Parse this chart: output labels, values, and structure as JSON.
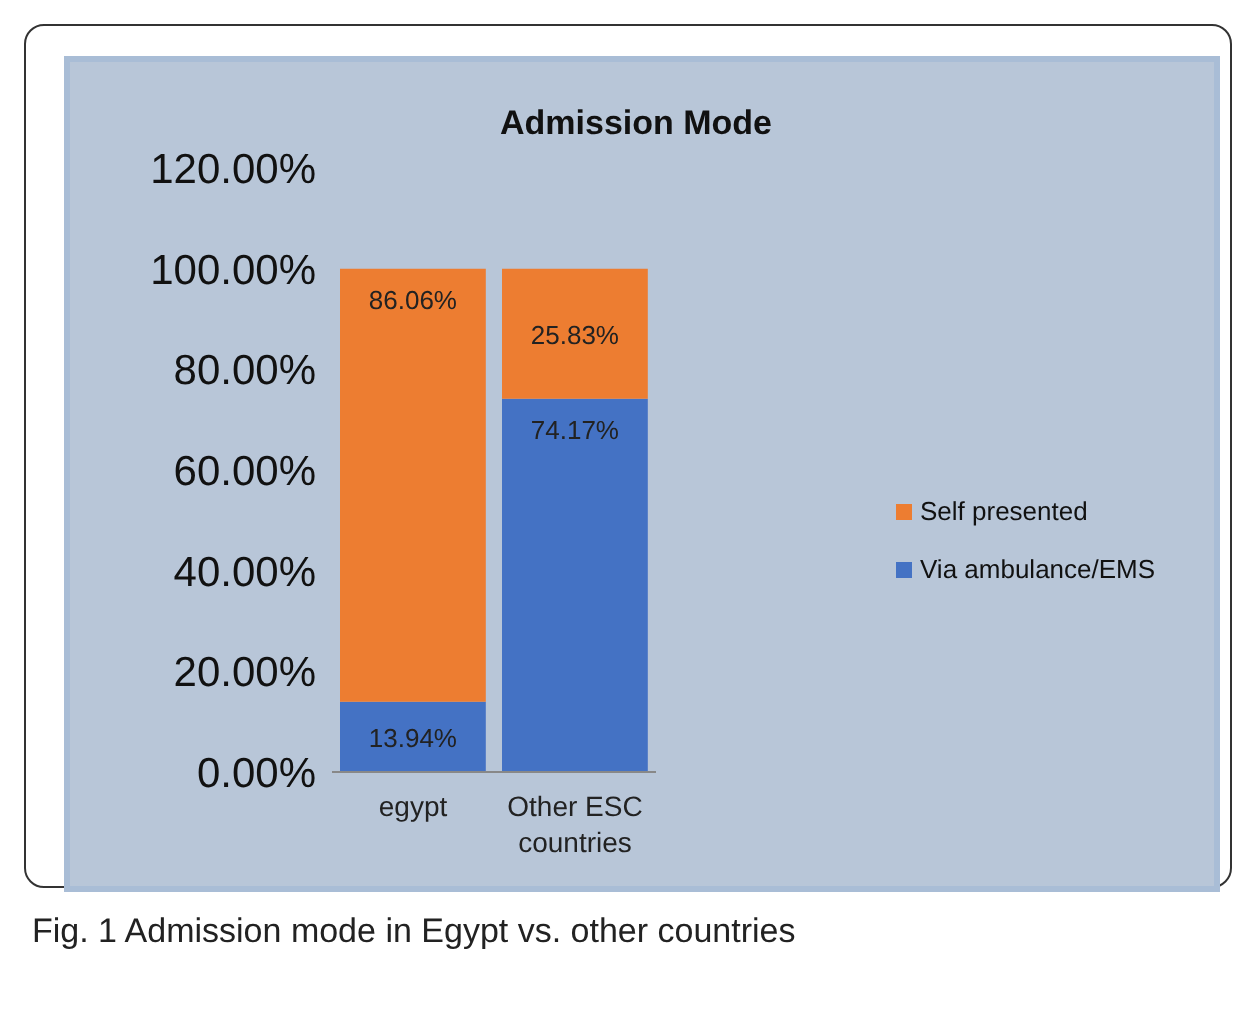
{
  "chart_data": {
    "type": "bar",
    "title": "Admission Mode",
    "categories": [
      "egypt",
      "Other ESC countries"
    ],
    "stacked": true,
    "series": [
      {
        "name": "Via ambulance/EMS",
        "color": "#4472c4",
        "values": [
          13.94,
          74.17
        ],
        "value_labels": [
          "13.94%",
          "74.17%"
        ]
      },
      {
        "name": "Self presented",
        "color": "#ed7d31",
        "values": [
          86.06,
          25.83
        ],
        "value_labels": [
          "86.06%",
          "25.83%"
        ]
      }
    ],
    "ylim": [
      0,
      120
    ],
    "yticks": [
      {
        "value": 0,
        "label": "0.00%"
      },
      {
        "value": 20,
        "label": "20.00%"
      },
      {
        "value": 40,
        "label": "40.00%"
      },
      {
        "value": 60,
        "label": "60.00%"
      },
      {
        "value": 80,
        "label": "80.00%"
      },
      {
        "value": 100,
        "label": "100.00%"
      },
      {
        "value": 120,
        "label": "120.00%"
      }
    ],
    "grid": false,
    "legend": "right",
    "annotations": [
      "Fig. 1 Admission mode in Egypt vs. other countries"
    ]
  }
}
